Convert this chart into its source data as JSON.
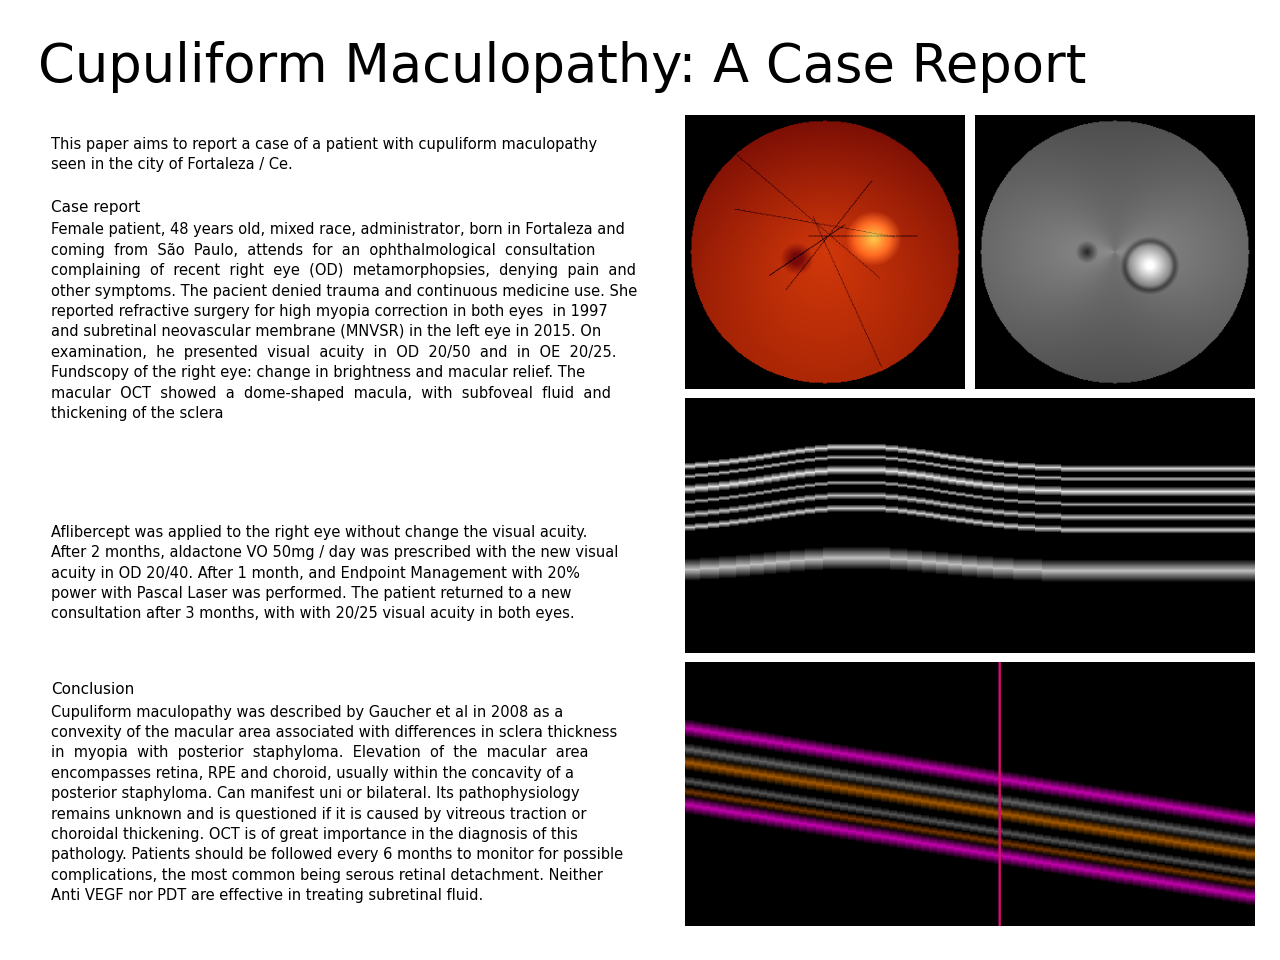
{
  "title": "Cupuliform Maculopathy: A Case Report",
  "title_fontsize": 38,
  "background_color": "#ffffff",
  "text_color": "#000000",
  "abstract_text": "This paper aims to report a case of a patient with cupuliform maculopathy\nseen in the city of Fortaleza / Ce.",
  "case_report_label": "Case report",
  "case_report_text": "Female patient, 48 years old, mixed race, administrator, born in Fortaleza and\ncoming  from  São  Paulo,  attends  for  an  ophthalmological  consultation\ncomplaining  of  recent  right  eye  (OD)  metamorphopsies,  denying  pain  and\nother symptoms. The pacient denied trauma and continuous medicine use. She\nreported refractive surgery for high myopia correction in both eyes  in 1997\nand subretinal neovascular membrane (MNVSR) in the left eye in 2015. On\nexamination,  he  presented  visual  acuity  in  OD  20/50  and  in  OE  20/25.\nFundscopy of the right eye: change in brightness and macular relief. The\nmacular  OCT  showed  a  dome-shaped  macula,  with  subfoveal  fluid  and\nthickening of the sclera",
  "treatment_text": "Aflibercept was applied to the right eye without change the visual acuity.\nAfter 2 months, aldactone VO 50mg / day was prescribed with the new visual\nacuity in OD 20/40. After 1 month, and Endpoint Management with 20%\npower with Pascal Laser was performed. The patient returned to a new\nconsultation after 3 months, with with 20/25 visual acuity in both eyes.",
  "conclusion_label": "Conclusion",
  "conclusion_text": "Cupuliform maculopathy was described by Gaucher et al in 2008 as a\nconvexity of the macular area associated with differences in sclera thickness\nin  myopia  with  posterior  staphyloma.  Elevation  of  the  macular  area\nencompasses retina, RPE and choroid, usually within the concavity of a\nposterior staphyloma. Can manifest uni or bilateral. Its pathophysiology\nremains unknown and is questioned if it is caused by vitreous traction or\nchoroidal thickening. OCT is of great importance in the diagnosis of this\npathology. Patients should be followed every 6 months to monitor for possible\ncomplications, the most common being serous retinal detachment. Neither\nAnti VEGF nor PDT are effective in treating subretinal fluid.",
  "text_fontsize": 10.5,
  "label_fontsize": 11,
  "img1_color": "#3a1200",
  "img2_color": "#111111",
  "img3_color": "#050505",
  "img4_color": "#050505"
}
